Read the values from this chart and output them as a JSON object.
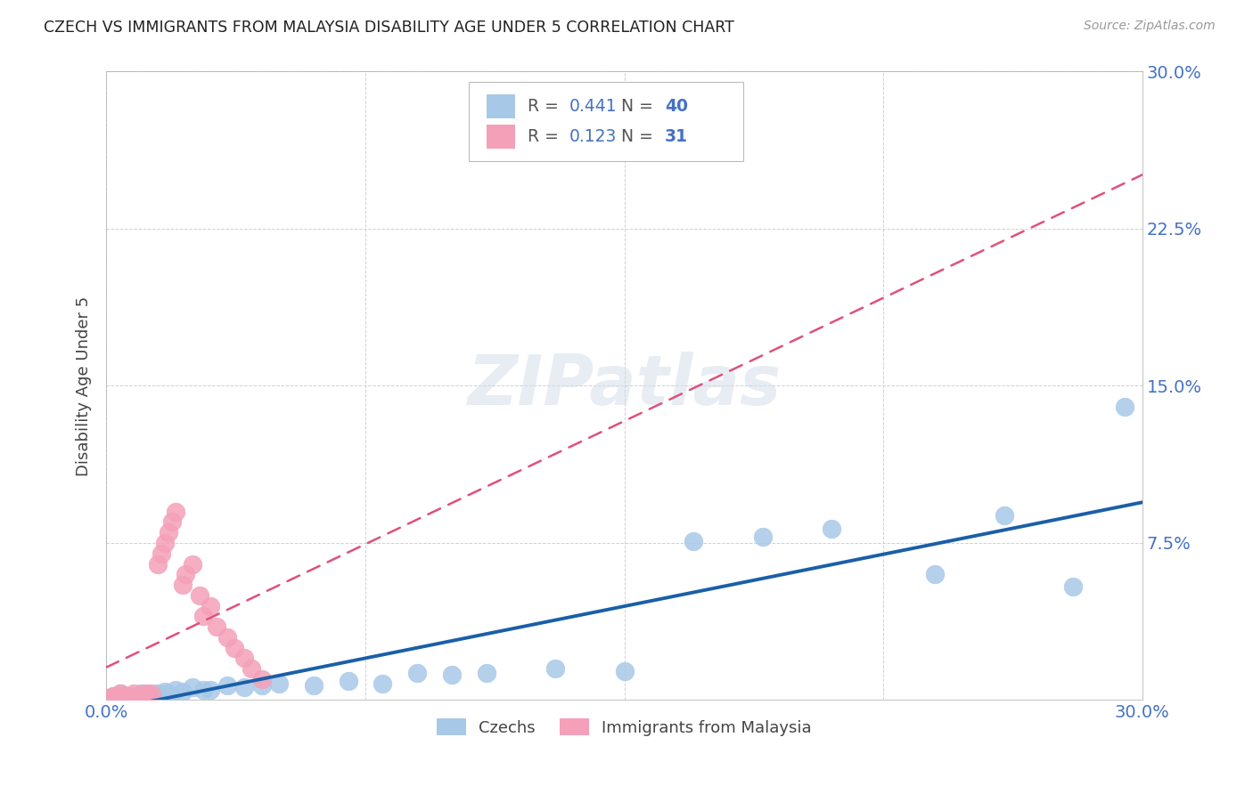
{
  "title": "CZECH VS IMMIGRANTS FROM MALAYSIA DISABILITY AGE UNDER 5 CORRELATION CHART",
  "source": "Source: ZipAtlas.com",
  "ylabel": "Disability Age Under 5",
  "xlim": [
    0.0,
    0.3
  ],
  "ylim": [
    0.0,
    0.3
  ],
  "xtick_positions": [
    0.0,
    0.075,
    0.15,
    0.225,
    0.3
  ],
  "ytick_positions": [
    0.0,
    0.075,
    0.15,
    0.225,
    0.3
  ],
  "xticklabels": [
    "0.0%",
    "",
    "",
    "",
    "30.0%"
  ],
  "yticklabels_right": [
    "",
    "7.5%",
    "15.0%",
    "22.5%",
    "30.0%"
  ],
  "czechs_R": 0.441,
  "czechs_N": 40,
  "malaysia_R": 0.123,
  "malaysia_N": 31,
  "czechs_color": "#a8c8e8",
  "malaysia_color": "#f4a0b8",
  "czechs_line_color": "#1a5fa8",
  "malaysia_line_color": "#e0507a",
  "legend_label_czechs": "Czechs",
  "legend_label_malaysia": "Immigrants from Malaysia",
  "background_color": "#ffffff",
  "czechs_x": [
    0.001,
    0.002,
    0.003,
    0.004,
    0.005,
    0.006,
    0.007,
    0.008,
    0.009,
    0.01,
    0.011,
    0.012,
    0.013,
    0.015,
    0.017,
    0.018,
    0.02,
    0.022,
    0.025,
    0.028,
    0.03,
    0.035,
    0.04,
    0.045,
    0.05,
    0.06,
    0.07,
    0.08,
    0.09,
    0.1,
    0.11,
    0.13,
    0.15,
    0.17,
    0.19,
    0.21,
    0.24,
    0.26,
    0.28,
    0.295
  ],
  "czechs_y": [
    0.001,
    0.002,
    0.001,
    0.003,
    0.002,
    0.001,
    0.002,
    0.001,
    0.002,
    0.003,
    0.002,
    0.003,
    0.002,
    0.003,
    0.004,
    0.003,
    0.005,
    0.004,
    0.006,
    0.005,
    0.005,
    0.007,
    0.006,
    0.007,
    0.008,
    0.007,
    0.009,
    0.008,
    0.013,
    0.012,
    0.013,
    0.015,
    0.014,
    0.076,
    0.078,
    0.082,
    0.06,
    0.088,
    0.054,
    0.14
  ],
  "malaysia_x": [
    0.001,
    0.002,
    0.003,
    0.004,
    0.005,
    0.006,
    0.007,
    0.008,
    0.009,
    0.01,
    0.011,
    0.012,
    0.013,
    0.015,
    0.016,
    0.017,
    0.018,
    0.019,
    0.02,
    0.022,
    0.023,
    0.025,
    0.027,
    0.028,
    0.03,
    0.032,
    0.035,
    0.037,
    0.04,
    0.042,
    0.045
  ],
  "malaysia_y": [
    0.001,
    0.002,
    0.001,
    0.003,
    0.002,
    0.002,
    0.001,
    0.003,
    0.001,
    0.002,
    0.003,
    0.002,
    0.003,
    0.065,
    0.07,
    0.075,
    0.08,
    0.085,
    0.09,
    0.055,
    0.06,
    0.065,
    0.05,
    0.04,
    0.045,
    0.035,
    0.03,
    0.025,
    0.02,
    0.015,
    0.01
  ]
}
